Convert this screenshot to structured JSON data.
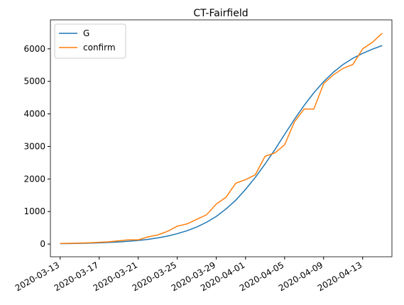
{
  "chart_data": {
    "type": "line",
    "title": "CT-Fairfield",
    "x": [
      "2020-03-13",
      "2020-03-14",
      "2020-03-15",
      "2020-03-16",
      "2020-03-17",
      "2020-03-18",
      "2020-03-19",
      "2020-03-20",
      "2020-03-21",
      "2020-03-22",
      "2020-03-23",
      "2020-03-24",
      "2020-03-25",
      "2020-03-26",
      "2020-03-27",
      "2020-03-28",
      "2020-03-29",
      "2020-03-30",
      "2020-03-31",
      "2020-04-01",
      "2020-04-02",
      "2020-04-03",
      "2020-04-04",
      "2020-04-05",
      "2020-04-06",
      "2020-04-07",
      "2020-04-08",
      "2020-04-09",
      "2020-04-10",
      "2020-04-11",
      "2020-04-12",
      "2020-04-13",
      "2020-04-14",
      "2020-04-15"
    ],
    "series": [
      {
        "name": "G",
        "color": "#1f77b4",
        "values": [
          13,
          17,
          22,
          29,
          38,
          50,
          66,
          86,
          112,
          145,
          190,
          245,
          320,
          410,
          525,
          670,
          850,
          1080,
          1350,
          1680,
          2050,
          2460,
          2900,
          3370,
          3830,
          4260,
          4650,
          4990,
          5280,
          5520,
          5710,
          5860,
          5990,
          6100
        ]
      },
      {
        "name": "confirm",
        "color": "#ff7f0e",
        "values": [
          20,
          25,
          30,
          40,
          55,
          70,
          100,
          130,
          130,
          220,
          280,
          390,
          550,
          620,
          760,
          900,
          1230,
          1440,
          1870,
          1980,
          2130,
          2700,
          2800,
          3050,
          3750,
          4150,
          4150,
          4930,
          5200,
          5400,
          5520,
          6000,
          6200,
          6480
        ]
      }
    ],
    "xlim": [
      "2020-03-12",
      "2020-04-16"
    ],
    "xticks": [
      "2020-03-13",
      "2020-03-17",
      "2020-03-21",
      "2020-03-25",
      "2020-03-29",
      "2020-04-01",
      "2020-04-05",
      "2020-04-09",
      "2020-04-13"
    ],
    "ylim": [
      -390,
      6890
    ],
    "yticks": [
      0,
      1000,
      2000,
      3000,
      4000,
      5000,
      6000
    ],
    "legend": "upper left"
  }
}
